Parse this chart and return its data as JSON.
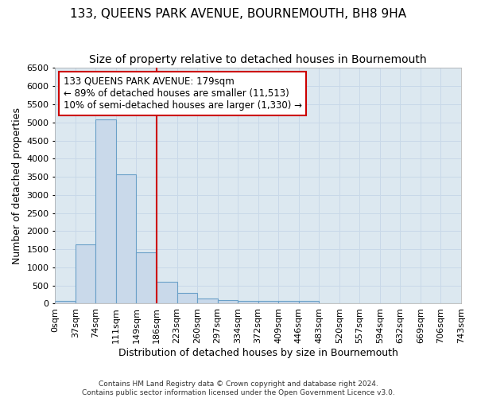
{
  "title": "133, QUEENS PARK AVENUE, BOURNEMOUTH, BH8 9HA",
  "subtitle": "Size of property relative to detached houses in Bournemouth",
  "xlabel": "Distribution of detached houses by size in Bournemouth",
  "ylabel": "Number of detached properties",
  "bin_labels": [
    "0sqm",
    "37sqm",
    "74sqm",
    "111sqm",
    "149sqm",
    "186sqm",
    "223sqm",
    "260sqm",
    "297sqm",
    "334sqm",
    "372sqm",
    "409sqm",
    "446sqm",
    "483sqm",
    "520sqm",
    "557sqm",
    "594sqm",
    "632sqm",
    "669sqm",
    "706sqm",
    "743sqm"
  ],
  "bar_values": [
    75,
    1625,
    5075,
    3575,
    1425,
    600,
    300,
    150,
    100,
    75,
    75,
    75,
    75,
    0,
    0,
    0,
    0,
    0,
    0,
    0
  ],
  "bar_color": "#c9d9ea",
  "bar_edge_color": "#6aa0c8",
  "vline_x_label": "186sqm",
  "vline_x_index": 5,
  "vline_color": "#cc0000",
  "annotation_text": "133 QUEENS PARK AVENUE: 179sqm\n← 89% of detached houses are smaller (11,513)\n10% of semi-detached houses are larger (1,330) →",
  "annotation_box_color": "#cc0000",
  "ylim": [
    0,
    6500
  ],
  "yticks": [
    0,
    500,
    1000,
    1500,
    2000,
    2500,
    3000,
    3500,
    4000,
    4500,
    5000,
    5500,
    6000,
    6500
  ],
  "grid_color": "#c8d8e8",
  "plot_bg_color": "#dce8f0",
  "fig_bg_color": "#ffffff",
  "title_fontsize": 11,
  "subtitle_fontsize": 10,
  "axis_label_fontsize": 9,
  "tick_fontsize": 8,
  "annotation_fontsize": 8.5,
  "footer_text": "Contains HM Land Registry data © Crown copyright and database right 2024.\nContains public sector information licensed under the Open Government Licence v3.0."
}
